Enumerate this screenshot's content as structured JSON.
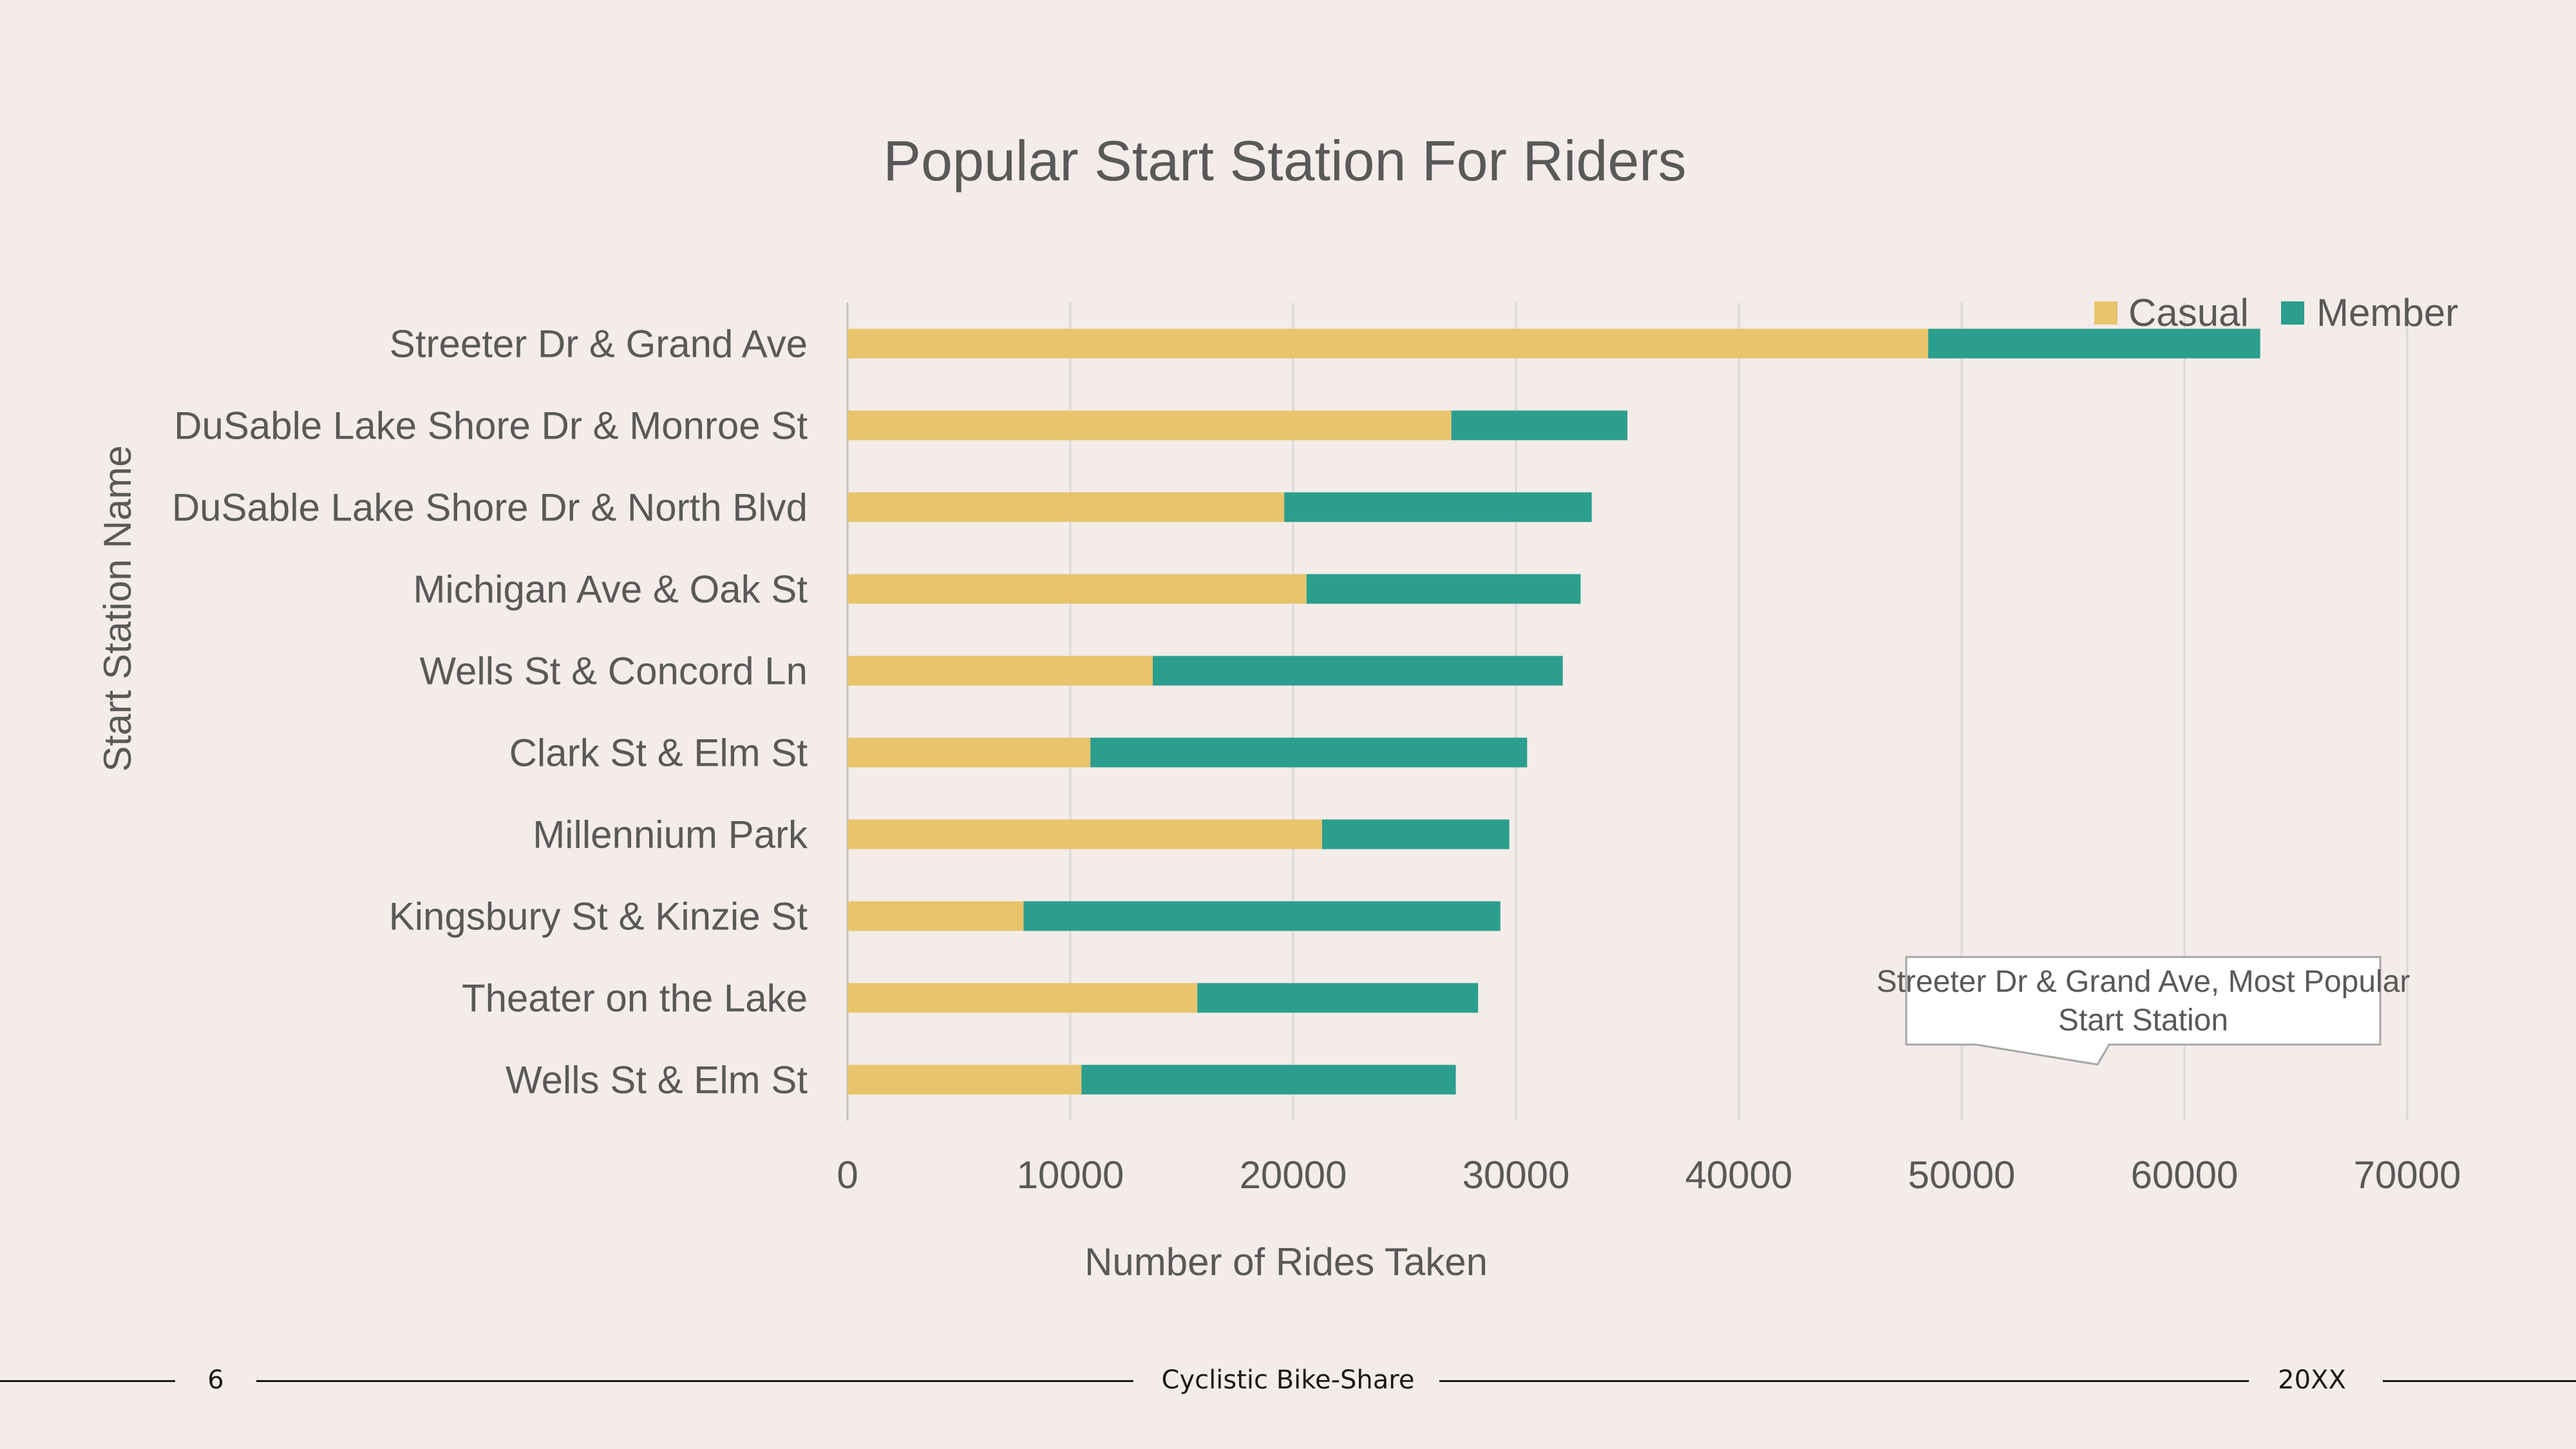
{
  "colors": {
    "background": "#F3ECE9",
    "casual": "#E8C46C",
    "member": "#2B9E8D",
    "text": "#595959",
    "grid": "#D9D9D9"
  },
  "chart_data": {
    "type": "bar",
    "orientation": "horizontal",
    "stacked": true,
    "title": "Popular Start Station For Riders",
    "xlabel": "Number of Rides Taken",
    "ylabel": "Start Station Name",
    "xlim": [
      0,
      70000
    ],
    "xticks": [
      "0",
      "10000",
      "20000",
      "30000",
      "40000",
      "50000",
      "60000",
      "70000"
    ],
    "grid": "vertical",
    "legend_position": "top-right",
    "categories": [
      "Wells St & Elm St",
      "Theater on the Lake",
      "Kingsbury St & Kinzie St",
      "Millennium Park",
      "Clark St & Elm St",
      "Wells St & Concord Ln",
      "Michigan Ave & Oak St",
      "DuSable Lake Shore Dr & North Blvd",
      "DuSable Lake Shore Dr & Monroe St",
      "Streeter Dr & Grand Ave"
    ],
    "series": [
      {
        "name": "Casual",
        "values": [
          10500,
          15700,
          7900,
          21300,
          10900,
          13700,
          20600,
          19600,
          27100,
          48500
        ]
      },
      {
        "name": "Member",
        "values": [
          16800,
          12600,
          21400,
          8400,
          19600,
          18400,
          12300,
          13800,
          7900,
          14900
        ]
      }
    ],
    "annotation": {
      "category": "Streeter Dr & Grand Ave",
      "lines": [
        "Streeter Dr & Grand Ave, Most Popular",
        "Start Station"
      ]
    }
  },
  "footer": {
    "page_number": "6",
    "center": "Cyclistic Bike-Share",
    "right": "20XX"
  }
}
